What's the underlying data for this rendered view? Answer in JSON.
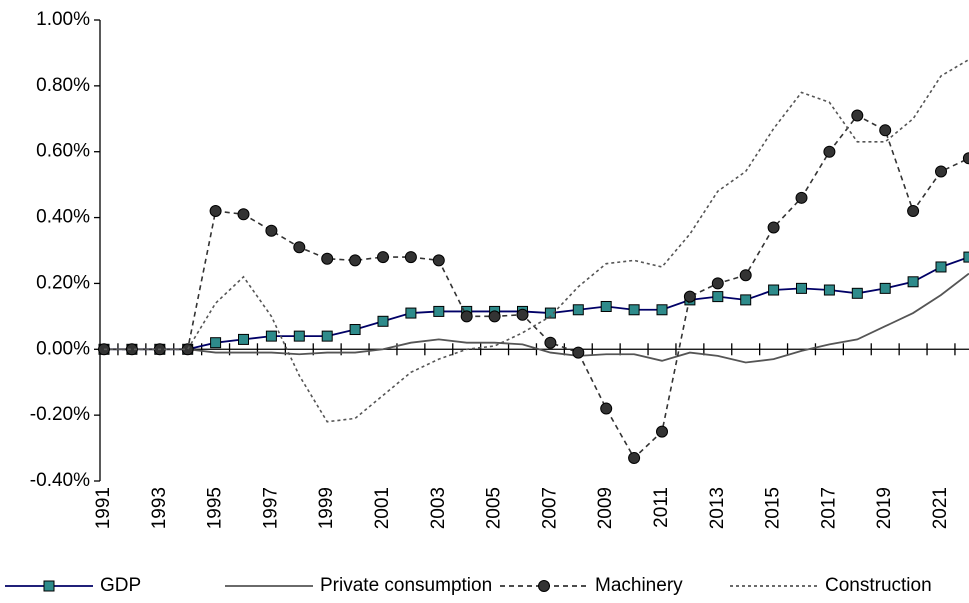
{
  "chart_data": {
    "type": "line",
    "categories": [
      "1991",
      null,
      "1993",
      null,
      "1995",
      null,
      "1997",
      null,
      "1999",
      null,
      "2001",
      null,
      "2003",
      null,
      "2005",
      null,
      "2007",
      null,
      "2009",
      null,
      "2011",
      null,
      "2013",
      null,
      "2015",
      null,
      "2017",
      null,
      "2019",
      null,
      "2021",
      null
    ],
    "ylim": [
      -0.4,
      1.0
    ],
    "yticks": [
      {
        "value": -0.4,
        "label": "-0.40%"
      },
      {
        "value": -0.2,
        "label": "-0.20%"
      },
      {
        "value": 0,
        "label": "0.00%"
      },
      {
        "value": 0.2,
        "label": "0.20%"
      },
      {
        "value": 0.4,
        "label": "0.40%"
      },
      {
        "value": 0.6,
        "label": "0.60%"
      },
      {
        "value": 0.8,
        "label": "0.80%"
      },
      {
        "value": 1.0,
        "label": "1.00%"
      }
    ],
    "legend": "bottom",
    "series": [
      {
        "name": "GDP",
        "color": "#000066",
        "marker": "square",
        "marker_color": "#2e8b8b",
        "line_style": "solid",
        "values": [
          0,
          0,
          0,
          0,
          0.02,
          0.03,
          0.04,
          0.04,
          0.04,
          0.06,
          0.085,
          0.11,
          0.115,
          0.115,
          0.115,
          0.115,
          0.11,
          0.12,
          0.13,
          0.12,
          0.12,
          0.15,
          0.16,
          0.15,
          0.18,
          0.185,
          0.18,
          0.17,
          0.185,
          0.205,
          0.25,
          0.28
        ]
      },
      {
        "name": "Private consumption",
        "color": "#555555",
        "marker": "none",
        "line_style": "solid",
        "values": [
          0,
          0,
          0,
          0,
          -0.01,
          -0.01,
          -0.01,
          -0.015,
          -0.01,
          -0.01,
          0,
          0.02,
          0.03,
          0.02,
          0.02,
          0.015,
          -0.01,
          -0.02,
          -0.015,
          -0.015,
          -0.035,
          -0.01,
          -0.02,
          -0.04,
          -0.03,
          -0.005,
          0.015,
          0.03,
          0.07,
          0.11,
          0.165,
          0.23
        ]
      },
      {
        "name": "Machinery",
        "color": "#333333",
        "marker": "circle",
        "marker_color": "#333333",
        "line_style": "dashed",
        "values": [
          0,
          0,
          0,
          0,
          0.42,
          0.41,
          0.36,
          0.31,
          0.275,
          0.27,
          0.28,
          0.28,
          0.27,
          0.1,
          0.1,
          0.105,
          0.02,
          -0.01,
          -0.18,
          -0.33,
          -0.25,
          0.16,
          0.2,
          0.225,
          0.37,
          0.46,
          0.6,
          0.71,
          0.665,
          0.42,
          0.54,
          0.58
        ]
      },
      {
        "name": "Construction",
        "color": "#555555",
        "marker": "none",
        "line_style": "dotted",
        "values": [
          0,
          0,
          0,
          0,
          0.14,
          0.22,
          0.1,
          -0.08,
          -0.22,
          -0.21,
          -0.14,
          -0.07,
          -0.03,
          0,
          0.01,
          0.05,
          0.1,
          0.19,
          0.26,
          0.27,
          0.25,
          0.35,
          0.48,
          0.54,
          0.67,
          0.78,
          0.75,
          0.63,
          0.63,
          0.7,
          0.83,
          0.88
        ]
      }
    ]
  }
}
